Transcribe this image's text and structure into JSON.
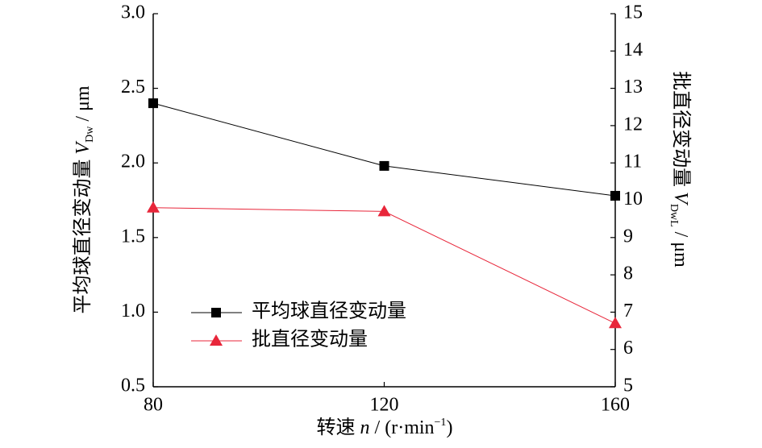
{
  "chart_data": {
    "type": "line",
    "xlabel": {
      "text": "转速",
      "var": "n",
      "unit": "/ (r·min",
      "sup": "−1",
      "close": ")"
    },
    "ylabel": {
      "text": "平均球直径变动量",
      "var": "V",
      "sub": "Dw",
      "unit": "/ μm"
    },
    "y2label": {
      "text": "批直径变动量",
      "var": "V",
      "sub": "DwL",
      "unit": "/ μm"
    },
    "x": [
      80,
      120,
      160
    ],
    "xlim": [
      80,
      160
    ],
    "xticks": [
      80,
      120,
      160
    ],
    "ylim": [
      0.5,
      3.0
    ],
    "yticks": [
      0.5,
      {
        "value": 1.0,
        "label": "1.0"
      },
      1.5,
      {
        "value": 2.0,
        "label": "2.0"
      },
      2.5,
      {
        "value": 3.0,
        "label": "3.0"
      }
    ],
    "y2lim": [
      5,
      15
    ],
    "y2ticks": [
      5,
      6,
      7,
      8,
      9,
      10,
      11,
      12,
      13,
      14,
      15
    ],
    "legend": "lower-left",
    "series": [
      {
        "name": "平均球直径变动量",
        "color": "#000000",
        "marker": "square",
        "values": [
          2.4,
          1.98,
          1.78
        ]
      },
      {
        "name": "批直径变动量",
        "color": "#e8263a",
        "marker": "triangle",
        "axis": "y2",
        "values": [
          9.8,
          9.7,
          6.7
        ]
      }
    ]
  }
}
